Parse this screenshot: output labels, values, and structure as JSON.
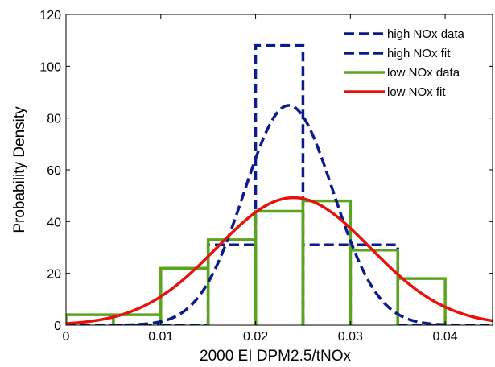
{
  "chart_data": {
    "type": "line",
    "xlabel": "2000 EI DPM2.5/tNOx",
    "ylabel": "Probability Density",
    "xlim": [
      0,
      0.045
    ],
    "ylim": [
      0,
      120
    ],
    "xticks": [
      0,
      0.01,
      0.02,
      0.03,
      0.04
    ],
    "xtick_labels": [
      "0",
      "0.01",
      "0.02",
      "0.03",
      "0.04"
    ],
    "yticks": [
      0,
      20,
      40,
      60,
      80,
      100,
      120
    ],
    "ytick_labels": [
      "0",
      "20",
      "40",
      "60",
      "80",
      "100",
      "120"
    ],
    "grid": false,
    "legend_position": "top-right",
    "series": [
      {
        "name": "high NOx data",
        "kind": "histogram",
        "color": "#0b1a8c",
        "dash": "dashed",
        "bin_edges": [
          0,
          0.005,
          0.01,
          0.015,
          0.02,
          0.025,
          0.03,
          0.035,
          0.04
        ],
        "values": [
          0,
          0,
          0,
          31,
          108,
          31,
          31,
          0
        ]
      },
      {
        "name": "high NOx fit",
        "kind": "normal_pdf",
        "color": "#0b1a8c",
        "dash": "dashed",
        "mean": 0.0235,
        "sd": 0.0047
      },
      {
        "name": "low NOx data",
        "kind": "histogram",
        "color": "#5aa51e",
        "dash": "solid",
        "bin_edges": [
          0,
          0.005,
          0.01,
          0.015,
          0.02,
          0.025,
          0.03,
          0.035,
          0.04
        ],
        "values": [
          4,
          4,
          22,
          33,
          44,
          48,
          29,
          18
        ]
      },
      {
        "name": "low NOx fit",
        "kind": "normal_pdf",
        "color": "#e8120c",
        "dash": "solid",
        "mean": 0.024,
        "sd": 0.0081
      }
    ]
  }
}
